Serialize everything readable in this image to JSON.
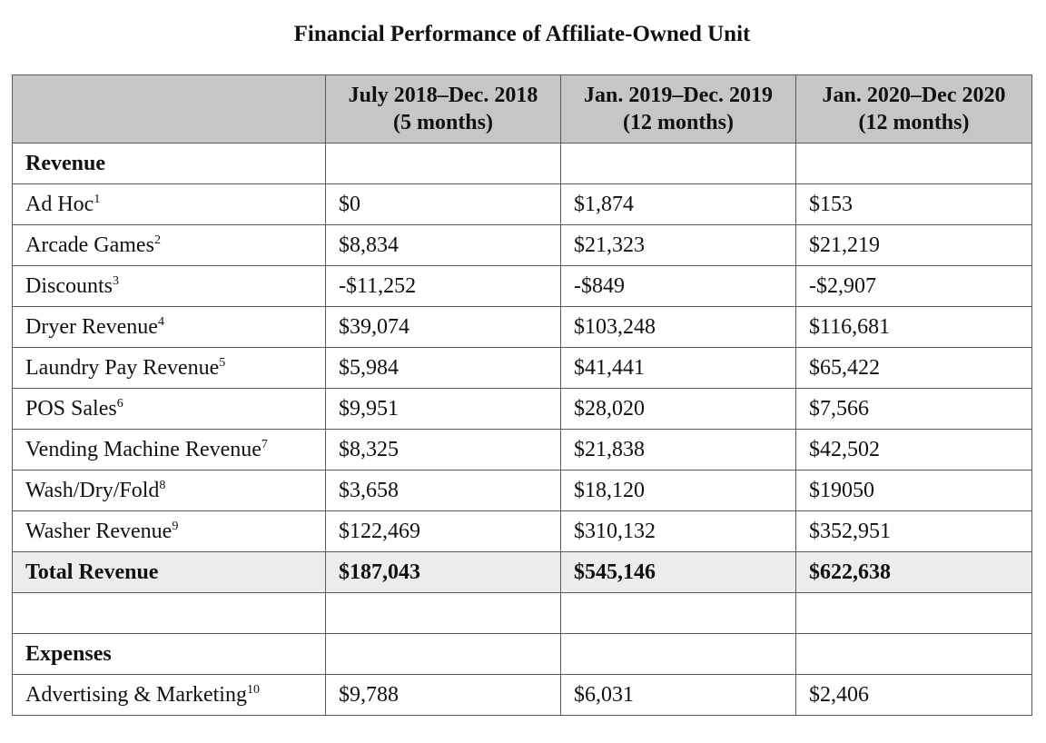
{
  "title": "Financial Performance of Affiliate-Owned Unit",
  "columns": [
    {
      "line1": "",
      "line2": ""
    },
    {
      "line1": "July 2018–Dec. 2018",
      "line2": "(5 months)"
    },
    {
      "line1": "Jan. 2019–Dec. 2019",
      "line2": "(12 months)"
    },
    {
      "line1": "Jan. 2020–Dec 2020",
      "line2": "(12 months)"
    }
  ],
  "revenue_section": {
    "label": "Revenue"
  },
  "revenue_rows": [
    {
      "label": "Ad Hoc",
      "note": "1",
      "v1": "$0",
      "v2": "$1,874",
      "v3": "$153"
    },
    {
      "label": "Arcade Games",
      "note": "2",
      "v1": "$8,834",
      "v2": "$21,323",
      "v3": "$21,219"
    },
    {
      "label": "Discounts",
      "note": "3",
      "v1": "-$11,252",
      "v2": "-$849",
      "v3": "-$2,907"
    },
    {
      "label": "Dryer Revenue",
      "note": "4",
      "v1": "$39,074",
      "v2": "$103,248",
      "v3": "$116,681"
    },
    {
      "label": "Laundry Pay Revenue",
      "note": "5",
      "v1": "$5,984",
      "v2": "$41,441",
      "v3": "$65,422"
    },
    {
      "label": "POS Sales",
      "note": "6",
      "v1": "$9,951",
      "v2": "$28,020",
      "v3": "$7,566"
    },
    {
      "label": "Vending Machine Revenue",
      "note": "7",
      "v1": "$8,325",
      "v2": "$21,838",
      "v3": "$42,502"
    },
    {
      "label": "Wash/Dry/Fold",
      "note": "8",
      "v1": "$3,658",
      "v2": "$18,120",
      "v3": "$19050"
    },
    {
      "label": "Washer Revenue",
      "note": "9",
      "v1": "$122,469",
      "v2": "$310,132",
      "v3": "$352,951"
    }
  ],
  "total_revenue": {
    "label": "Total Revenue",
    "v1": "$187,043",
    "v2": "$545,146",
    "v3": "$622,638"
  },
  "expenses_section": {
    "label": "Expenses"
  },
  "expense_rows": [
    {
      "label": "Advertising & Marketing",
      "note": "10",
      "v1": "$9,788",
      "v2": "$6,031",
      "v3": "$2,406"
    }
  ]
}
